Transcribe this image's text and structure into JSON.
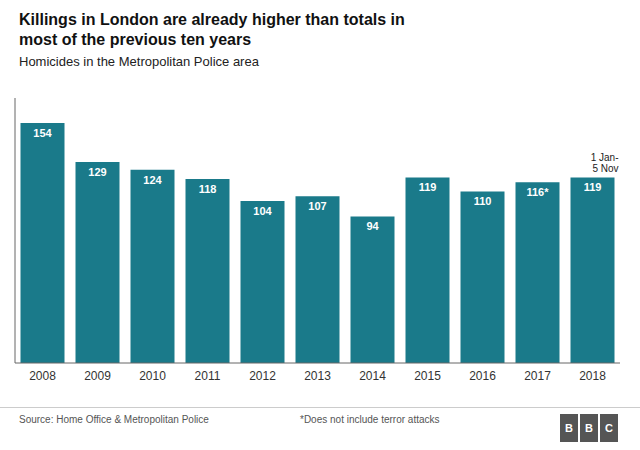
{
  "chart_data": {
    "type": "bar",
    "title": "Killings in London are already higher than totals in\nmost of the previous ten years",
    "subtitle": "Homicides in the Metropolitan Police area",
    "categories": [
      "2008",
      "2009",
      "2010",
      "2011",
      "2012",
      "2013",
      "2014",
      "2015",
      "2016",
      "2017",
      "2018"
    ],
    "values": [
      154,
      129,
      124,
      118,
      104,
      107,
      94,
      119,
      110,
      116,
      119
    ],
    "value_labels": [
      "154",
      "129",
      "124",
      "118",
      "104",
      "107",
      "94",
      "119",
      "110",
      "116*",
      "119"
    ],
    "data_labels": true,
    "color": "#1a7a8a",
    "ylim": [
      0,
      170
    ],
    "tick_labels": "x",
    "grid": false,
    "annotations": [
      {
        "text": "1 Jan-\n5 Nov",
        "category": "2018"
      }
    ],
    "source": "Source: Home Office & Metropolitan Police",
    "footnote": "*Does not include terror attacks",
    "logo": "BBC"
  }
}
